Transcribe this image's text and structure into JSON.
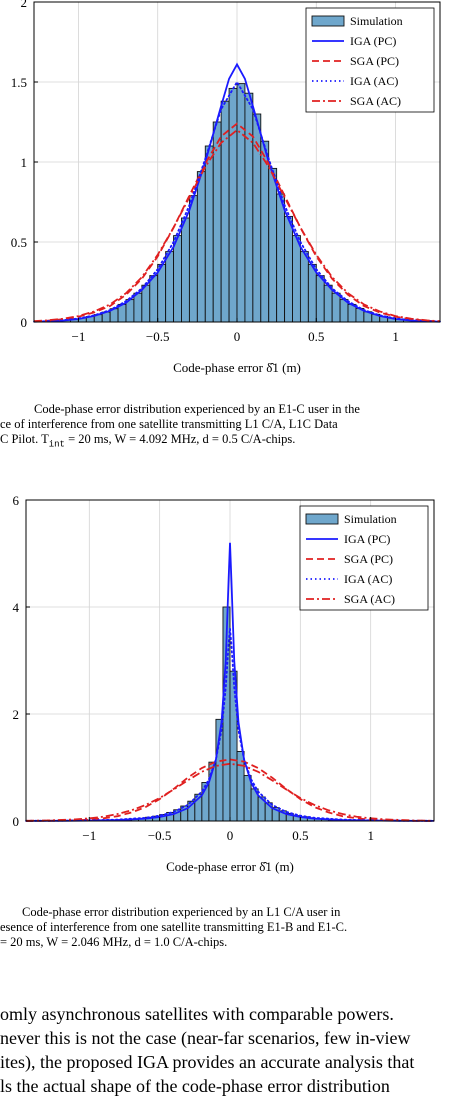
{
  "chart_data": [
    {
      "type": "bar",
      "xlabel": "Code-phase error δ̂1 (m)",
      "xlim": [
        -1.28,
        1.28
      ],
      "ylim": [
        0,
        2
      ],
      "xticks": [
        -1,
        -0.5,
        0,
        0.5,
        1
      ],
      "xtick_labels": [
        "−1",
        "−0.5",
        "0",
        "0.5",
        "1"
      ],
      "yticks": [
        0,
        0.5,
        1,
        1.5,
        2
      ],
      "ytick_labels": [
        "0",
        "0.5",
        "1",
        "1.5",
        "2"
      ],
      "grid": true,
      "legend_position": "top-right",
      "histogram": {
        "name": "Simulation",
        "bin_width": 0.05,
        "bin_centers": [
          -1.275,
          -1.225,
          -1.175,
          -1.125,
          -1.075,
          -1.025,
          -0.975,
          -0.925,
          -0.875,
          -0.825,
          -0.775,
          -0.725,
          -0.675,
          -0.625,
          -0.575,
          -0.525,
          -0.475,
          -0.425,
          -0.375,
          -0.325,
          -0.275,
          -0.225,
          -0.175,
          -0.125,
          -0.075,
          -0.025,
          0.025,
          0.075,
          0.125,
          0.175,
          0.225,
          0.275,
          0.325,
          0.375,
          0.425,
          0.475,
          0.525,
          0.575,
          0.625,
          0.675,
          0.725,
          0.775,
          0.825,
          0.875,
          0.925,
          0.975,
          1.025,
          1.075,
          1.125,
          1.175,
          1.225,
          1.275
        ],
        "values": [
          0.003,
          0.004,
          0.006,
          0.009,
          0.013,
          0.018,
          0.025,
          0.034,
          0.046,
          0.062,
          0.083,
          0.11,
          0.14,
          0.18,
          0.23,
          0.29,
          0.36,
          0.44,
          0.54,
          0.65,
          0.79,
          0.94,
          1.1,
          1.25,
          1.38,
          1.46,
          1.49,
          1.43,
          1.3,
          1.13,
          0.96,
          0.8,
          0.66,
          0.54,
          0.44,
          0.36,
          0.29,
          0.23,
          0.18,
          0.14,
          0.11,
          0.085,
          0.064,
          0.048,
          0.035,
          0.026,
          0.019,
          0.013,
          0.009,
          0.006,
          0.004,
          0.003
        ]
      },
      "series": [
        {
          "name": "IGA (PC)",
          "color": "#1a1aff",
          "style": "solid",
          "x": [
            -1.28,
            -1.2,
            -1.1,
            -1.0,
            -0.9,
            -0.8,
            -0.7,
            -0.6,
            -0.5,
            -0.4,
            -0.3,
            -0.2,
            -0.1,
            -0.05,
            0,
            0.05,
            0.1,
            0.2,
            0.3,
            0.4,
            0.5,
            0.6,
            0.7,
            0.8,
            0.9,
            1.0,
            1.1,
            1.2,
            1.28
          ],
          "y": [
            0.002,
            0.004,
            0.009,
            0.019,
            0.038,
            0.07,
            0.12,
            0.2,
            0.31,
            0.47,
            0.7,
            1.0,
            1.35,
            1.52,
            1.61,
            1.52,
            1.35,
            1.0,
            0.7,
            0.47,
            0.31,
            0.2,
            0.12,
            0.07,
            0.038,
            0.019,
            0.009,
            0.004,
            0.002
          ]
        },
        {
          "name": "SGA (PC)",
          "color": "#e02020",
          "style": "dashed",
          "x": [
            -1.28,
            -1.2,
            -1.1,
            -1.0,
            -0.9,
            -0.8,
            -0.7,
            -0.6,
            -0.5,
            -0.4,
            -0.3,
            -0.2,
            -0.1,
            0,
            0.1,
            0.2,
            0.3,
            0.4,
            0.5,
            0.6,
            0.7,
            0.8,
            0.9,
            1.0,
            1.1,
            1.2,
            1.28
          ],
          "y": [
            0.004,
            0.008,
            0.017,
            0.033,
            0.06,
            0.1,
            0.17,
            0.27,
            0.41,
            0.59,
            0.79,
            0.99,
            1.16,
            1.24,
            1.16,
            0.99,
            0.79,
            0.59,
            0.41,
            0.27,
            0.17,
            0.1,
            0.06,
            0.033,
            0.017,
            0.008,
            0.004
          ]
        },
        {
          "name": "IGA (AC)",
          "color": "#1a1aff",
          "style": "dotted",
          "x": [
            -1.28,
            -1.2,
            -1.1,
            -1.0,
            -0.9,
            -0.8,
            -0.7,
            -0.6,
            -0.5,
            -0.4,
            -0.3,
            -0.2,
            -0.1,
            0,
            0.1,
            0.2,
            0.3,
            0.4,
            0.5,
            0.6,
            0.7,
            0.8,
            0.9,
            1.0,
            1.1,
            1.2,
            1.28
          ],
          "y": [
            0.003,
            0.005,
            0.011,
            0.022,
            0.042,
            0.075,
            0.13,
            0.21,
            0.33,
            0.5,
            0.73,
            1.02,
            1.33,
            1.5,
            1.33,
            1.02,
            0.73,
            0.5,
            0.33,
            0.21,
            0.13,
            0.075,
            0.042,
            0.022,
            0.011,
            0.005,
            0.003
          ]
        },
        {
          "name": "SGA (AC)",
          "color": "#e02020",
          "style": "dashdot",
          "x": [
            -1.28,
            -1.2,
            -1.1,
            -1.0,
            -0.9,
            -0.8,
            -0.7,
            -0.6,
            -0.5,
            -0.4,
            -0.3,
            -0.2,
            -0.1,
            0,
            0.1,
            0.2,
            0.3,
            0.4,
            0.5,
            0.6,
            0.7,
            0.8,
            0.9,
            1.0,
            1.1,
            1.2,
            1.28
          ],
          "y": [
            0.005,
            0.01,
            0.02,
            0.037,
            0.066,
            0.11,
            0.18,
            0.28,
            0.42,
            0.59,
            0.78,
            0.97,
            1.12,
            1.2,
            1.12,
            0.97,
            0.78,
            0.59,
            0.42,
            0.28,
            0.18,
            0.11,
            0.066,
            0.037,
            0.02,
            0.01,
            0.005
          ]
        }
      ]
    },
    {
      "type": "bar",
      "xlabel": "Code-phase error δ̂1 (m)",
      "xlim": [
        -1.45,
        1.45
      ],
      "ylim": [
        0,
        6
      ],
      "xticks": [
        -1,
        -0.5,
        0,
        0.5,
        1
      ],
      "xtick_labels": [
        "−1",
        "−0.5",
        "0",
        "0.5",
        "1"
      ],
      "yticks": [
        0,
        2,
        4,
        6
      ],
      "ytick_labels": [
        "0",
        "2",
        "4",
        "6"
      ],
      "grid": true,
      "legend_position": "top-right",
      "histogram": {
        "name": "Simulation",
        "bin_width": 0.05,
        "bin_centers": [
          -0.725,
          -0.675,
          -0.625,
          -0.575,
          -0.525,
          -0.475,
          -0.425,
          -0.375,
          -0.325,
          -0.275,
          -0.225,
          -0.175,
          -0.125,
          -0.075,
          -0.025,
          0.025,
          0.075,
          0.125,
          0.175,
          0.225,
          0.275,
          0.325,
          0.375,
          0.425,
          0.475,
          0.525,
          0.575,
          0.625,
          0.675,
          0.725
        ],
        "values": [
          0.02,
          0.03,
          0.05,
          0.07,
          0.09,
          0.12,
          0.16,
          0.21,
          0.28,
          0.37,
          0.5,
          0.72,
          1.1,
          1.9,
          4.0,
          2.8,
          1.3,
          0.85,
          0.6,
          0.45,
          0.34,
          0.25,
          0.19,
          0.14,
          0.1,
          0.08,
          0.06,
          0.04,
          0.03,
          0.02
        ]
      },
      "series": [
        {
          "name": "IGA (PC)",
          "color": "#1a1aff",
          "style": "solid",
          "x": [
            -1.45,
            -1.2,
            -1.0,
            -0.8,
            -0.6,
            -0.5,
            -0.4,
            -0.3,
            -0.2,
            -0.15,
            -0.1,
            -0.06,
            -0.03,
            -0.01,
            0,
            0.01,
            0.03,
            0.06,
            0.1,
            0.15,
            0.2,
            0.3,
            0.4,
            0.5,
            0.6,
            0.8,
            1.0,
            1.2,
            1.45
          ],
          "y": [
            0.002,
            0.004,
            0.008,
            0.018,
            0.045,
            0.075,
            0.13,
            0.24,
            0.48,
            0.72,
            1.15,
            1.85,
            3.0,
            4.5,
            5.2,
            4.5,
            3.0,
            1.85,
            1.15,
            0.72,
            0.48,
            0.24,
            0.13,
            0.075,
            0.045,
            0.018,
            0.008,
            0.004,
            0.002
          ]
        },
        {
          "name": "SGA (PC)",
          "color": "#e02020",
          "style": "dashed",
          "x": [
            -1.45,
            -1.3,
            -1.1,
            -1.0,
            -0.9,
            -0.8,
            -0.7,
            -0.6,
            -0.5,
            -0.4,
            -0.3,
            -0.2,
            -0.1,
            0,
            0.1,
            0.2,
            0.3,
            0.4,
            0.5,
            0.6,
            0.7,
            0.8,
            0.9,
            1.0,
            1.1,
            1.3,
            1.45
          ],
          "y": [
            0.001,
            0.003,
            0.012,
            0.025,
            0.05,
            0.09,
            0.16,
            0.26,
            0.41,
            0.6,
            0.81,
            0.99,
            1.11,
            1.15,
            1.11,
            0.99,
            0.81,
            0.6,
            0.41,
            0.26,
            0.16,
            0.09,
            0.05,
            0.025,
            0.012,
            0.003,
            0.001
          ]
        },
        {
          "name": "IGA (AC)",
          "color": "#1a1aff",
          "style": "dotted",
          "x": [
            -1.45,
            -1.2,
            -1.0,
            -0.8,
            -0.6,
            -0.5,
            -0.4,
            -0.3,
            -0.2,
            -0.15,
            -0.1,
            -0.06,
            -0.03,
            -0.01,
            0,
            0.01,
            0.03,
            0.06,
            0.1,
            0.15,
            0.2,
            0.3,
            0.4,
            0.5,
            0.6,
            0.8,
            1.0,
            1.2,
            1.45
          ],
          "y": [
            0.003,
            0.006,
            0.012,
            0.026,
            0.06,
            0.1,
            0.17,
            0.3,
            0.55,
            0.78,
            1.15,
            1.7,
            2.5,
            3.3,
            3.6,
            3.3,
            2.5,
            1.7,
            1.15,
            0.78,
            0.55,
            0.3,
            0.17,
            0.1,
            0.06,
            0.026,
            0.012,
            0.006,
            0.003
          ]
        },
        {
          "name": "SGA (AC)",
          "color": "#e02020",
          "style": "dashdot",
          "x": [
            -1.45,
            -1.3,
            -1.1,
            -1.0,
            -0.9,
            -0.8,
            -0.7,
            -0.6,
            -0.5,
            -0.4,
            -0.3,
            -0.2,
            -0.1,
            0,
            0.1,
            0.2,
            0.3,
            0.4,
            0.5,
            0.6,
            0.7,
            0.8,
            0.9,
            1.0,
            1.1,
            1.3,
            1.45
          ],
          "y": [
            0.004,
            0.01,
            0.03,
            0.05,
            0.08,
            0.13,
            0.2,
            0.3,
            0.43,
            0.59,
            0.76,
            0.92,
            1.03,
            1.07,
            1.03,
            0.92,
            0.76,
            0.59,
            0.43,
            0.3,
            0.2,
            0.13,
            0.08,
            0.05,
            0.03,
            0.01,
            0.004
          ]
        }
      ]
    }
  ],
  "captions": [
    {
      "lines": [
        "Code-phase error distribution experienced by an E1-C user in the",
        "ce of interference from one satellite transmitting L1 C/A, L1C Data",
        "C Pilot. T",
        "int",
        " = 20 ms, W = 4.092 MHz, d = 0.5 C/A-chips."
      ]
    },
    {
      "lines": [
        "Code-phase error distribution experienced by an L1 C/A user in",
        "esence of interference from one satellite transmitting E1-B and E1-C.",
        "= 20 ms, W = 2.046 MHz, d = 1.0 C/A-chips."
      ]
    }
  ],
  "body_text": {
    "lines": [
      "omly asynchronous satellites with comparable powers.",
      "never this is not the case (near-far scenarios, few in-view",
      "ites), the proposed IGA provides an accurate analysis that",
      "ls the actual shape of the code-phase error distribution"
    ]
  }
}
